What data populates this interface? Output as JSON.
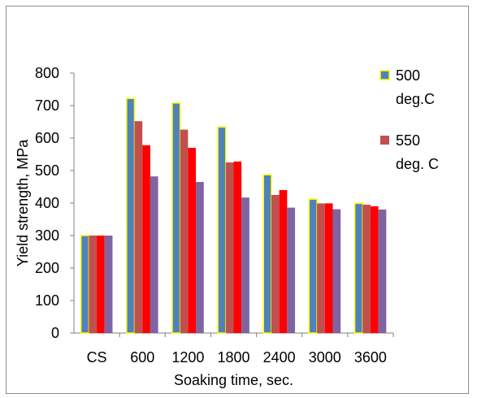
{
  "chart_data": {
    "type": "bar",
    "title": "",
    "xlabel": "Soaking time, sec.",
    "ylabel": "Yield strength, MPa",
    "ylim": [
      0,
      800
    ],
    "yticks": [
      0,
      100,
      200,
      300,
      400,
      500,
      600,
      700,
      800
    ],
    "categories": [
      "CS",
      "600",
      "1200",
      "1800",
      "2400",
      "3000",
      "3600"
    ],
    "series": [
      {
        "name": "500 deg.C",
        "color": "#4f81bd",
        "outline": "#ffff00",
        "values": [
          300,
          722,
          708,
          634,
          487,
          412,
          399
        ]
      },
      {
        "name": "550 deg. C",
        "color": "#c0504d",
        "values": [
          300,
          652,
          626,
          525,
          425,
          399,
          395
        ]
      },
      {
        "name": "",
        "color": "#ff0000",
        "values": [
          300,
          578,
          570,
          528,
          440,
          399,
          390
        ]
      },
      {
        "name": "",
        "color": "#8064a2",
        "values": [
          300,
          482,
          465,
          417,
          386,
          381,
          380
        ]
      }
    ],
    "legend": {
      "position": "right",
      "entries": [
        {
          "line1": "500",
          "line2": "deg.C",
          "color": "#4f81bd",
          "outline": "#ffff00"
        },
        {
          "line1": "550",
          "line2": "deg. C",
          "color": "#c0504d"
        }
      ]
    },
    "grid": false
  }
}
